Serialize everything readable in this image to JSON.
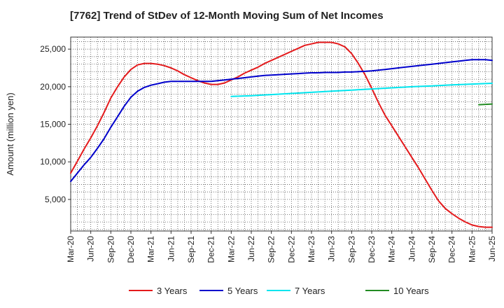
{
  "chart_data": {
    "type": "line",
    "title": "[7762]  Trend of StDev of 12-Month Moving Sum of Net Incomes",
    "xlabel": "",
    "ylabel": "Amount (million yen)",
    "x_ticks": [
      "Mar-20",
      "Jun-20",
      "Sep-20",
      "Dec-20",
      "Mar-21",
      "Jun-21",
      "Sep-21",
      "Dec-21",
      "Mar-22",
      "Jun-22",
      "Sep-22",
      "Dec-22",
      "Mar-23",
      "Jun-23",
      "Sep-23",
      "Dec-23",
      "Mar-24",
      "Jun-24",
      "Sep-24",
      "Dec-24",
      "Mar-25",
      "Jun-25"
    ],
    "y_ticks": [
      5000,
      10000,
      15000,
      20000,
      25000
    ],
    "y_tick_labels": [
      "5,000",
      "10,000",
      "15,000",
      "20,000",
      "25,000"
    ],
    "ylim": [
      800,
      26600
    ],
    "grid": true,
    "legend_position": "bottom",
    "series": [
      {
        "name": "3 Years",
        "color": "#e41a1c",
        "points": [
          [
            "Mar-20",
            8500
          ],
          [
            "Apr-20",
            10100
          ],
          [
            "May-20",
            11700
          ],
          [
            "Jun-20",
            13200
          ],
          [
            "Jul-20",
            14800
          ],
          [
            "Aug-20",
            16600
          ],
          [
            "Sep-20",
            18500
          ],
          [
            "Oct-20",
            20000
          ],
          [
            "Nov-20",
            21300
          ],
          [
            "Dec-20",
            22300
          ],
          [
            "Jan-21",
            22900
          ],
          [
            "Feb-21",
            23100
          ],
          [
            "Mar-21",
            23100
          ],
          [
            "Apr-21",
            23000
          ],
          [
            "May-21",
            22800
          ],
          [
            "Jun-21",
            22500
          ],
          [
            "Jul-21",
            22100
          ],
          [
            "Aug-21",
            21600
          ],
          [
            "Sep-21",
            21200
          ],
          [
            "Oct-21",
            20800
          ],
          [
            "Nov-21",
            20500
          ],
          [
            "Dec-21",
            20300
          ],
          [
            "Jan-22",
            20300
          ],
          [
            "Feb-22",
            20500
          ],
          [
            "Mar-22",
            20900
          ],
          [
            "Apr-22",
            21300
          ],
          [
            "May-22",
            21800
          ],
          [
            "Jun-22",
            22200
          ],
          [
            "Jul-22",
            22600
          ],
          [
            "Aug-22",
            23100
          ],
          [
            "Sep-22",
            23500
          ],
          [
            "Oct-22",
            23900
          ],
          [
            "Nov-22",
            24300
          ],
          [
            "Dec-22",
            24700
          ],
          [
            "Jan-23",
            25100
          ],
          [
            "Feb-23",
            25500
          ],
          [
            "Mar-23",
            25700
          ],
          [
            "Apr-23",
            25900
          ],
          [
            "May-23",
            25900
          ],
          [
            "Jun-23",
            25900
          ],
          [
            "Jul-23",
            25700
          ],
          [
            "Aug-23",
            25300
          ],
          [
            "Sep-23",
            24400
          ],
          [
            "Oct-23",
            23100
          ],
          [
            "Nov-23",
            21600
          ],
          [
            "Dec-23",
            19800
          ],
          [
            "Jan-24",
            17900
          ],
          [
            "Feb-24",
            16200
          ],
          [
            "Mar-24",
            14800
          ],
          [
            "Apr-24",
            13400
          ],
          [
            "May-24",
            12000
          ],
          [
            "Jun-24",
            10600
          ],
          [
            "Jul-24",
            9200
          ],
          [
            "Aug-24",
            7700
          ],
          [
            "Sep-24",
            6200
          ],
          [
            "Oct-24",
            4800
          ],
          [
            "Nov-24",
            3800
          ],
          [
            "Dec-24",
            3100
          ],
          [
            "Jan-25",
            2500
          ],
          [
            "Feb-25",
            2000
          ],
          [
            "Mar-25",
            1600
          ],
          [
            "Apr-25",
            1400
          ],
          [
            "May-25",
            1300
          ],
          [
            "Jun-25",
            1300
          ]
        ]
      },
      {
        "name": "5 Years",
        "color": "#0000cc",
        "points": [
          [
            "Mar-20",
            7400
          ],
          [
            "Apr-20",
            8500
          ],
          [
            "May-20",
            9600
          ],
          [
            "Jun-20",
            10600
          ],
          [
            "Jul-20",
            11800
          ],
          [
            "Aug-20",
            13100
          ],
          [
            "Sep-20",
            14600
          ],
          [
            "Oct-20",
            16000
          ],
          [
            "Nov-20",
            17400
          ],
          [
            "Dec-20",
            18600
          ],
          [
            "Jan-21",
            19400
          ],
          [
            "Feb-21",
            19900
          ],
          [
            "Mar-21",
            20200
          ],
          [
            "Apr-21",
            20400
          ],
          [
            "May-21",
            20600
          ],
          [
            "Jun-21",
            20700
          ],
          [
            "Jul-21",
            20700
          ],
          [
            "Aug-21",
            20700
          ],
          [
            "Sep-21",
            20700
          ],
          [
            "Oct-21",
            20700
          ],
          [
            "Nov-21",
            20700
          ],
          [
            "Dec-21",
            20700
          ],
          [
            "Jan-22",
            20800
          ],
          [
            "Feb-22",
            20900
          ],
          [
            "Mar-22",
            21000
          ],
          [
            "Apr-22",
            21100
          ],
          [
            "May-22",
            21200
          ],
          [
            "Jun-22",
            21300
          ],
          [
            "Jul-22",
            21400
          ],
          [
            "Aug-22",
            21500
          ],
          [
            "Sep-22",
            21550
          ],
          [
            "Oct-22",
            21600
          ],
          [
            "Nov-22",
            21650
          ],
          [
            "Dec-22",
            21700
          ],
          [
            "Jan-23",
            21750
          ],
          [
            "Feb-23",
            21800
          ],
          [
            "Mar-23",
            21850
          ],
          [
            "Apr-23",
            21850
          ],
          [
            "May-23",
            21900
          ],
          [
            "Jun-23",
            21900
          ],
          [
            "Jul-23",
            21900
          ],
          [
            "Aug-23",
            21950
          ],
          [
            "Sep-23",
            21950
          ],
          [
            "Oct-23",
            22000
          ],
          [
            "Nov-23",
            22050
          ],
          [
            "Dec-23",
            22100
          ],
          [
            "Jan-24",
            22200
          ],
          [
            "Feb-24",
            22300
          ],
          [
            "Mar-24",
            22400
          ],
          [
            "Apr-24",
            22500
          ],
          [
            "May-24",
            22600
          ],
          [
            "Jun-24",
            22700
          ],
          [
            "Jul-24",
            22800
          ],
          [
            "Aug-24",
            22900
          ],
          [
            "Sep-24",
            23000
          ],
          [
            "Oct-24",
            23100
          ],
          [
            "Nov-24",
            23200
          ],
          [
            "Dec-24",
            23300
          ],
          [
            "Jan-25",
            23400
          ],
          [
            "Feb-25",
            23500
          ],
          [
            "Mar-25",
            23600
          ],
          [
            "Apr-25",
            23600
          ],
          [
            "May-25",
            23600
          ],
          [
            "Jun-25",
            23500
          ]
        ]
      },
      {
        "name": "7 Years",
        "color": "#00e5ee",
        "points": [
          [
            "Mar-22",
            18700
          ],
          [
            "Jun-22",
            18800
          ],
          [
            "Sep-22",
            18950
          ],
          [
            "Dec-22",
            19100
          ],
          [
            "Mar-23",
            19250
          ],
          [
            "Jun-23",
            19400
          ],
          [
            "Sep-23",
            19550
          ],
          [
            "Dec-23",
            19700
          ],
          [
            "Mar-24",
            19850
          ],
          [
            "Jun-24",
            20000
          ],
          [
            "Sep-24",
            20100
          ],
          [
            "Dec-24",
            20250
          ],
          [
            "Mar-25",
            20350
          ],
          [
            "Jun-25",
            20450
          ]
        ]
      },
      {
        "name": "10 Years",
        "color": "#228b22",
        "points": [
          [
            "Apr-25",
            17600
          ],
          [
            "May-25",
            17650
          ],
          [
            "Jun-25",
            17700
          ]
        ]
      }
    ]
  }
}
